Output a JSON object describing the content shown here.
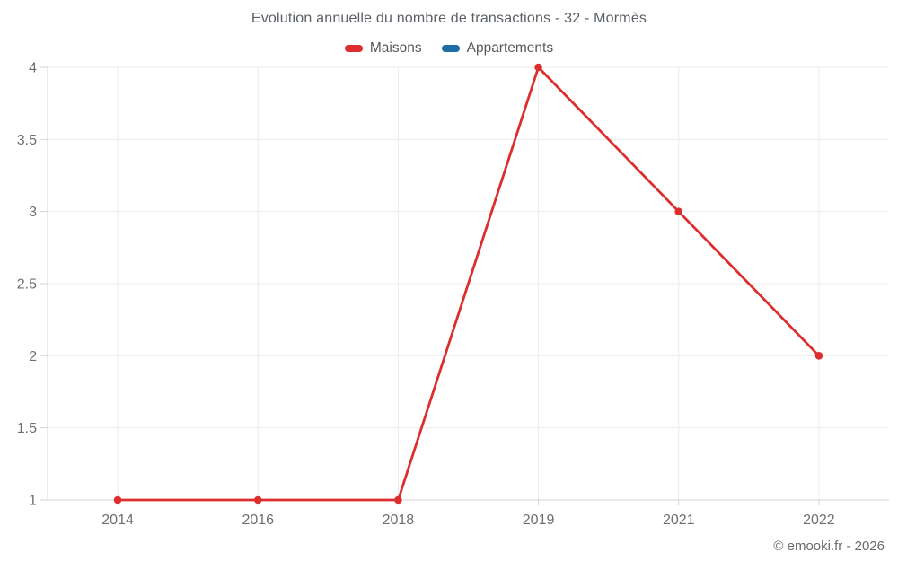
{
  "header": {
    "title": "Evolution annuelle du nombre de transactions - 32 - Mormès"
  },
  "footer": {
    "credit": "© emooki.fr - 2026"
  },
  "chart_data": {
    "type": "line",
    "title": "Evolution annuelle du nombre de transactions - 32 - Mormès",
    "categories": [
      "2014",
      "2016",
      "2018",
      "2019",
      "2021",
      "2022"
    ],
    "series": [
      {
        "name": "Maisons",
        "color": "#dc2e2e",
        "values": [
          1,
          1,
          1,
          4,
          3,
          2
        ]
      },
      {
        "name": "Appartements",
        "color": "#1c6ea4",
        "values": []
      }
    ],
    "xlabel": "",
    "ylabel": "",
    "ylim": [
      1,
      4
    ],
    "yticks": [
      1,
      1.5,
      2,
      2.5,
      3,
      3.5,
      4
    ],
    "grid": true,
    "legend_position": "top",
    "grid_color": "#ececec",
    "axis_color": "#d6d6d6",
    "tick_label_color": "#6e6e6e"
  }
}
